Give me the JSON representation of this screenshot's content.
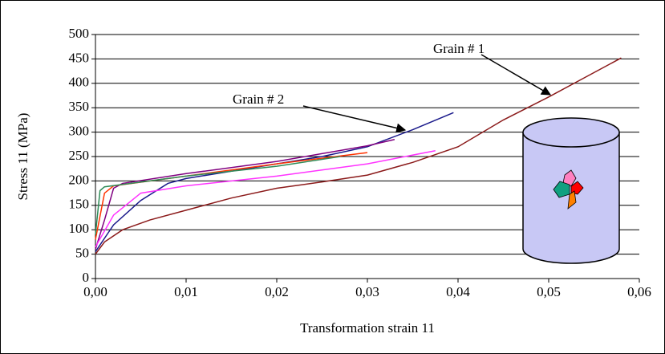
{
  "chart_data": {
    "type": "line",
    "xlabel": "Transformation strain 11",
    "ylabel": "Stress 11 (MPa)",
    "xlim": [
      0,
      0.06
    ],
    "xticks": [
      {
        "value": 0,
        "label": "0,00"
      },
      {
        "value": 0.01,
        "label": "0,01"
      },
      {
        "value": 0.02,
        "label": "0,02"
      },
      {
        "value": 0.03,
        "label": "0,03"
      },
      {
        "value": 0.04,
        "label": "0,04"
      },
      {
        "value": 0.05,
        "label": "0,05"
      },
      {
        "value": 0.06,
        "label": "0,06"
      }
    ],
    "ylim": [
      0,
      500
    ],
    "yticks": [
      0,
      50,
      100,
      150,
      200,
      250,
      300,
      350,
      400,
      450,
      500
    ],
    "grid": true,
    "annotations": [
      "Grain # 1",
      "Grain # 2"
    ],
    "series": [
      {
        "color": "#8b1a1a",
        "x": [
          0,
          0.001,
          0.003,
          0.006,
          0.01,
          0.015,
          0.02,
          0.025,
          0.03,
          0.035,
          0.04,
          0.045,
          0.05,
          0.054,
          0.058
        ],
        "values": [
          50,
          75,
          100,
          120,
          140,
          165,
          185,
          198,
          212,
          238,
          270,
          325,
          372,
          412,
          452
        ]
      },
      {
        "color": "#1a1a8b",
        "x": [
          0,
          0.002,
          0.005,
          0.008,
          0.01,
          0.015,
          0.02,
          0.025,
          0.03,
          0.035,
          0.0395
        ],
        "values": [
          55,
          110,
          160,
          195,
          205,
          220,
          235,
          250,
          270,
          305,
          340
        ]
      },
      {
        "color": "#800080",
        "x": [
          0,
          0.001,
          0.002,
          0.003,
          0.01,
          0.02,
          0.03,
          0.033
        ],
        "values": [
          60,
          120,
          185,
          195,
          215,
          240,
          272,
          285
        ]
      },
      {
        "color": "#ff3300",
        "x": [
          0,
          0.001,
          0.002,
          0.01,
          0.02,
          0.03
        ],
        "values": [
          80,
          175,
          190,
          210,
          235,
          258
        ]
      },
      {
        "color": "#2e8b57",
        "x": [
          0,
          0.0005,
          0.001,
          0.01,
          0.02,
          0.027
        ],
        "values": [
          90,
          180,
          188,
          210,
          230,
          250
        ]
      },
      {
        "color": "#ff33ff",
        "x": [
          0,
          0.002,
          0.005,
          0.01,
          0.02,
          0.03,
          0.0375
        ],
        "values": [
          65,
          130,
          175,
          190,
          210,
          235,
          262
        ]
      }
    ]
  }
}
